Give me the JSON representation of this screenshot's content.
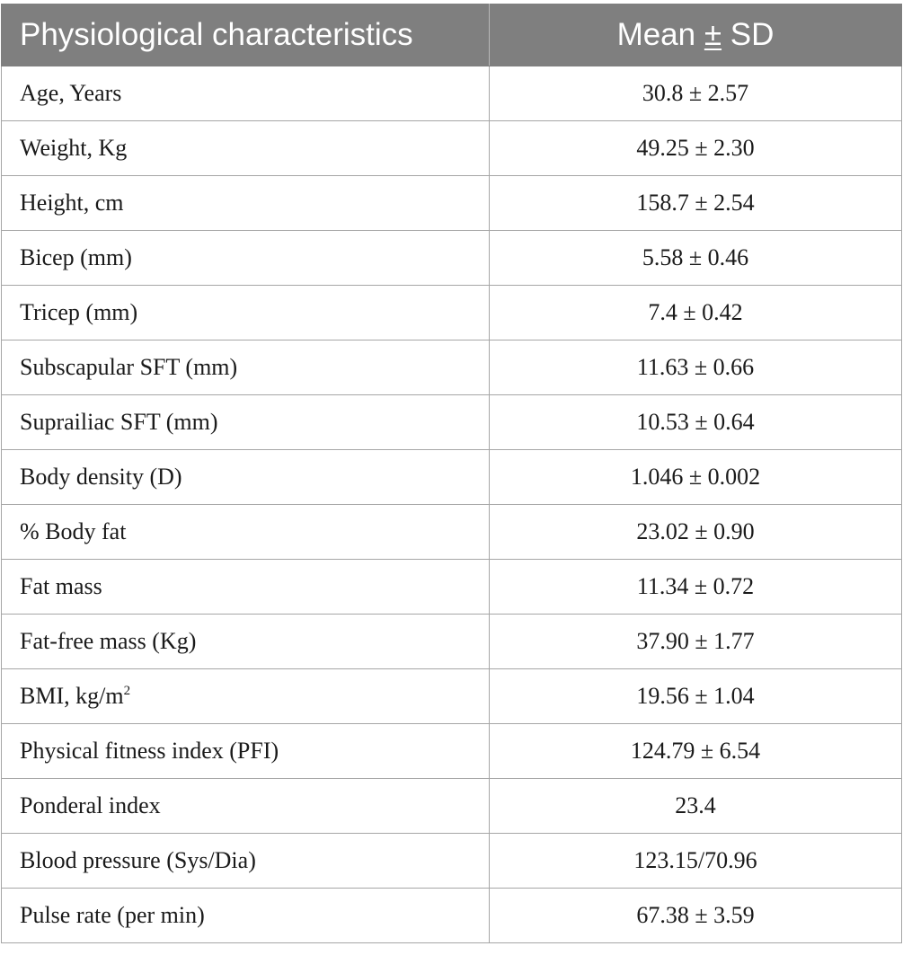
{
  "table": {
    "header": {
      "col1": "Physiological characteristics",
      "col2_prefix": "Mean ",
      "col2_pm": "±",
      "col2_suffix": " SD"
    },
    "rows": [
      {
        "label": "Age, Years",
        "value": "30.8 ± 2.57"
      },
      {
        "label": "Weight, Kg",
        "value": "49.25 ± 2.30"
      },
      {
        "label": "Height, cm",
        "value": "158.7 ± 2.54"
      },
      {
        "label": "Bicep (mm)",
        "value": "5.58 ± 0.46"
      },
      {
        "label": "Tricep (mm)",
        "value": "7.4 ± 0.42"
      },
      {
        "label": "Subscapular SFT (mm)",
        "value": "11.63 ± 0.66"
      },
      {
        "label": "Suprailiac SFT (mm)",
        "value": "10.53 ± 0.64"
      },
      {
        "label": "Body density (D)",
        "value": "1.046 ± 0.002"
      },
      {
        "label": "% Body fat",
        "value": "23.02 ± 0.90"
      },
      {
        "label": "Fat mass",
        "value": "11.34 ± 0.72"
      },
      {
        "label": "Fat-free mass (Kg)",
        "value": "37.90 ± 1.77"
      },
      {
        "label": "BMI, kg/m",
        "label_sup": "2",
        "value": "19.56 ± 1.04"
      },
      {
        "label": "Physical fitness index (PFI)",
        "value": "124.79 ± 6.54"
      },
      {
        "label": "Ponderal index",
        "value": "23.4"
      },
      {
        "label": "Blood pressure (Sys/Dia)",
        "value": "123.15/70.96"
      },
      {
        "label": "Pulse rate (per min)",
        "value": "67.38 ± 3.59"
      }
    ]
  },
  "colors": {
    "header_bg": "#7f7f7f",
    "header_text": "#ffffff",
    "border": "#a6a6a6"
  }
}
